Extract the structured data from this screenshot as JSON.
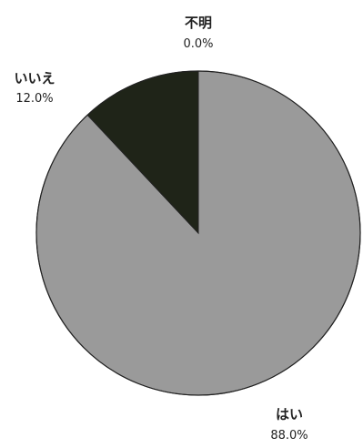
{
  "chart_data": {
    "type": "pie",
    "title": "",
    "start": "top",
    "direction": "clockwise",
    "slices": [
      {
        "label": "はい",
        "value": 88.0,
        "value_text": "88.0%",
        "color": "#9a9a9a"
      },
      {
        "label": "いいえ",
        "value": 12.0,
        "value_text": "12.0%",
        "color": "#1f2418"
      },
      {
        "label": "不明",
        "value": 0.0,
        "value_text": "0.0%",
        "color": "#6e6e6e"
      }
    ],
    "legend": "none",
    "outline_color": "#222222"
  }
}
